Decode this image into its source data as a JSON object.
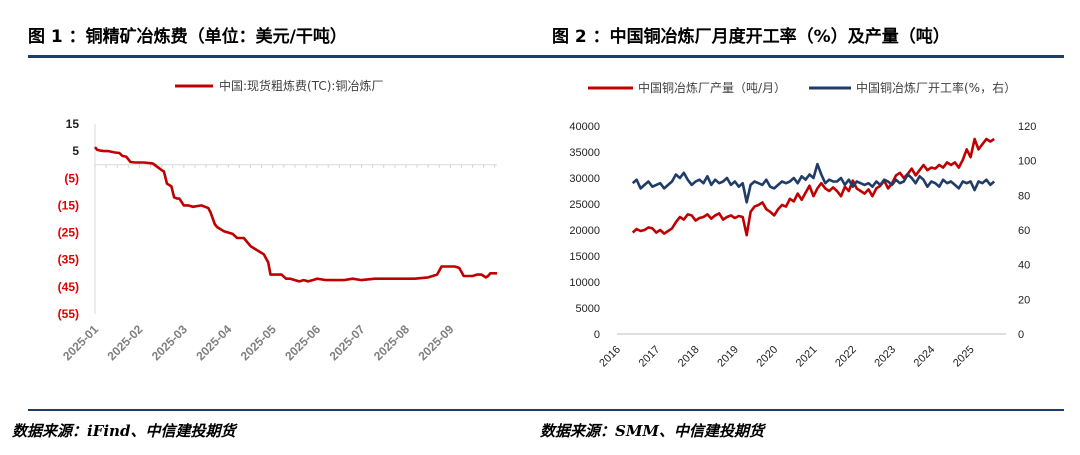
{
  "figures": [
    {
      "title": "图 1 ：铜精矿冶炼费（单位：美元/干吨）",
      "source": "数据来源：iFind、中信建投期货"
    },
    {
      "title": "图 2 ：中国铜冶炼厂月度开工率（%）及产量（吨）",
      "source": "数据来源：SMM、中信建投期货"
    }
  ],
  "colors": {
    "red": "#c00000",
    "blue": "#1f3d68",
    "negative_label": "#e00000",
    "rule": "#1f3e63"
  },
  "chart_data": [
    {
      "type": "line",
      "title": "铜精矿冶炼费（单位：美元/干吨）",
      "legend": [
        "中国:现货粗炼费(TC):铜冶炼厂"
      ],
      "ylim": [
        -55,
        15
      ],
      "yticks": [
        15,
        5,
        -5,
        -15,
        -25,
        -35,
        -45,
        -55
      ],
      "ytick_labels": [
        "15",
        "5",
        "(5)",
        "(15)",
        "(25)",
        "(35)",
        "(45)",
        "(55)"
      ],
      "xtick_labels": [
        "2025-01",
        "2025-02",
        "2025-03",
        "2025-04",
        "2025-05",
        "2025-06",
        "2025-07",
        "2025-08",
        "2025-09"
      ],
      "x_range_months": [
        0,
        9.05
      ],
      "series": [
        {
          "name": "中国:现货粗炼费(TC):铜冶炼厂",
          "x": [
            0.0,
            0.05,
            0.12,
            0.2,
            0.3,
            0.45,
            0.55,
            0.62,
            0.7,
            0.8,
            0.9,
            0.93,
            1.1,
            1.3,
            1.5,
            1.55,
            1.62,
            1.72,
            1.78,
            1.85,
            1.9,
            2.0,
            2.1,
            2.2,
            2.4,
            2.55,
            2.6,
            2.7,
            2.75,
            2.8,
            2.9,
            3.1,
            3.2,
            3.35,
            3.5,
            3.6,
            3.7,
            3.8,
            3.9,
            3.95,
            4.1,
            4.2,
            4.3,
            4.4,
            4.5,
            4.6,
            4.7,
            4.8,
            4.9,
            5.0,
            5.2,
            5.4,
            5.6,
            5.8,
            6.0,
            6.3,
            6.6,
            6.9,
            7.2,
            7.5,
            7.6,
            7.7,
            7.75,
            7.8,
            8.0,
            8.1,
            8.2,
            8.3,
            8.4,
            8.5,
            8.6,
            8.7,
            8.8,
            8.85,
            8.9,
            9.05
          ],
          "values": [
            6.5,
            5.5,
            5.2,
            5.0,
            5.0,
            4.5,
            4.3,
            3.2,
            3.0,
            1.0,
            0.8,
            0.8,
            0.8,
            0.5,
            -2.0,
            -2.5,
            -7.0,
            -8.0,
            -12.0,
            -12.5,
            -12.5,
            -15.0,
            -15.0,
            -15.5,
            -15.0,
            -16.0,
            -17.5,
            -22.0,
            -23.0,
            -23.5,
            -24.5,
            -25.5,
            -27.0,
            -27.0,
            -30.0,
            -31.0,
            -32.0,
            -33.0,
            -36.0,
            -40.5,
            -40.5,
            -40.5,
            -42.0,
            -42.0,
            -42.5,
            -43.0,
            -42.5,
            -43.0,
            -42.5,
            -42.0,
            -42.5,
            -42.5,
            -42.5,
            -42.0,
            -42.5,
            -42.0,
            -42.0,
            -42.0,
            -42.0,
            -41.5,
            -41.0,
            -40.5,
            -39.0,
            -37.5,
            -37.5,
            -37.5,
            -38.0,
            -41.0,
            -41.0,
            -41.0,
            -40.5,
            -40.5,
            -41.5,
            -41.0,
            -40.0,
            -40.0
          ]
        }
      ]
    },
    {
      "type": "line",
      "title": "中国铜冶炼厂月度开工率（%）及产量（吨）",
      "legend": [
        "中国铜冶炼厂产量（吨/月）",
        "中国铜冶炼厂开工率(%，右）"
      ],
      "ylim_left": [
        0,
        40000
      ],
      "yticks_left": [
        0,
        5000,
        10000,
        15000,
        20000,
        25000,
        30000,
        35000,
        40000
      ],
      "ylim_right": [
        0,
        120
      ],
      "yticks_right": [
        0,
        20,
        40,
        60,
        80,
        100,
        120
      ],
      "xtick_labels": [
        "2016",
        "2017",
        "2018",
        "2019",
        "2020",
        "2021",
        "2022",
        "2023",
        "2024",
        "2025"
      ],
      "x_range_years": [
        2016,
        2025.9
      ],
      "series": [
        {
          "name": "中国铜冶炼厂产量（吨/月）",
          "axis": "left",
          "x": [
            2016.4,
            2016.5,
            2016.6,
            2016.7,
            2016.8,
            2016.9,
            2017.0,
            2017.1,
            2017.2,
            2017.3,
            2017.4,
            2017.5,
            2017.6,
            2017.7,
            2017.8,
            2017.9,
            2018.0,
            2018.1,
            2018.2,
            2018.3,
            2018.4,
            2018.5,
            2018.6,
            2018.7,
            2018.8,
            2018.9,
            2019.0,
            2019.1,
            2019.2,
            2019.3,
            2019.4,
            2019.5,
            2019.6,
            2019.7,
            2019.8,
            2019.9,
            2020.0,
            2020.1,
            2020.2,
            2020.3,
            2020.4,
            2020.5,
            2020.6,
            2020.7,
            2020.8,
            2020.9,
            2021.0,
            2021.1,
            2021.2,
            2021.3,
            2021.4,
            2021.5,
            2021.6,
            2021.7,
            2021.8,
            2021.9,
            2022.0,
            2022.1,
            2022.2,
            2022.3,
            2022.4,
            2022.5,
            2022.6,
            2022.7,
            2022.8,
            2022.9,
            2023.0,
            2023.1,
            2023.2,
            2023.3,
            2023.4,
            2023.5,
            2023.6,
            2023.7,
            2023.8,
            2023.9,
            2024.0,
            2024.1,
            2024.2,
            2024.3,
            2024.4,
            2024.5,
            2024.6,
            2024.7,
            2024.8,
            2024.9,
            2025.0,
            2025.1,
            2025.2,
            2025.3,
            2025.4,
            2025.5,
            2025.6
          ],
          "values": [
            19500,
            20200,
            19800,
            20000,
            20500,
            20300,
            19500,
            20000,
            19300,
            19800,
            20300,
            21500,
            22500,
            22000,
            23000,
            22800,
            21800,
            22300,
            22500,
            23000,
            22200,
            22800,
            23200,
            22000,
            22500,
            22800,
            22300,
            22700,
            22500,
            19000,
            23500,
            24500,
            24800,
            25300,
            24000,
            23500,
            22800,
            24000,
            24800,
            24500,
            26000,
            25500,
            27000,
            25800,
            27200,
            28500,
            26500,
            28000,
            29000,
            28000,
            27500,
            28200,
            27500,
            26500,
            28300,
            27500,
            29500,
            28000,
            27500,
            27000,
            27800,
            26500,
            28000,
            28500,
            29500,
            28000,
            29000,
            30500,
            31000,
            30000,
            30800,
            31800,
            30500,
            31500,
            32500,
            31500,
            32000,
            31800,
            32500,
            32000,
            33000,
            32500,
            33000,
            32000,
            33500,
            35500,
            34000,
            37500,
            35500,
            36500,
            37500,
            37000,
            37500
          ]
        },
        {
          "name": "中国铜冶炼厂开工率(%，右）",
          "axis": "right",
          "x": [
            2016.4,
            2016.5,
            2016.6,
            2016.7,
            2016.8,
            2016.9,
            2017.0,
            2017.1,
            2017.2,
            2017.3,
            2017.4,
            2017.5,
            2017.6,
            2017.7,
            2017.8,
            2017.9,
            2018.0,
            2018.1,
            2018.2,
            2018.3,
            2018.4,
            2018.5,
            2018.6,
            2018.7,
            2018.8,
            2018.9,
            2019.0,
            2019.1,
            2019.2,
            2019.3,
            2019.4,
            2019.5,
            2019.6,
            2019.7,
            2019.8,
            2019.9,
            2020.0,
            2020.1,
            2020.2,
            2020.3,
            2020.4,
            2020.5,
            2020.6,
            2020.7,
            2020.8,
            2020.9,
            2021.0,
            2021.1,
            2021.2,
            2021.3,
            2021.4,
            2021.5,
            2021.6,
            2021.7,
            2021.8,
            2021.9,
            2022.0,
            2022.1,
            2022.2,
            2022.3,
            2022.4,
            2022.5,
            2022.6,
            2022.7,
            2022.8,
            2022.9,
            2023.0,
            2023.1,
            2023.2,
            2023.3,
            2023.4,
            2023.5,
            2023.6,
            2023.7,
            2023.8,
            2023.9,
            2024.0,
            2024.1,
            2024.2,
            2024.3,
            2024.4,
            2024.5,
            2024.6,
            2024.7,
            2024.8,
            2024.9,
            2025.0,
            2025.1,
            2025.2,
            2025.3,
            2025.4,
            2025.5,
            2025.6
          ],
          "values": [
            87,
            89,
            84,
            86,
            88,
            85,
            86,
            87,
            84,
            86,
            88,
            92,
            90,
            93,
            89,
            86,
            88,
            89,
            87,
            91,
            86,
            89,
            87,
            88,
            90,
            86,
            88,
            85,
            87,
            76,
            86,
            88,
            87,
            86,
            89,
            85,
            84,
            86,
            88,
            87,
            88,
            90,
            87,
            91,
            89,
            92,
            90,
            98,
            92,
            87,
            89,
            88,
            88,
            90,
            86,
            89,
            85,
            88,
            87,
            86,
            87,
            85,
            88,
            86,
            89,
            88,
            86,
            89,
            87,
            88,
            92,
            90,
            87,
            91,
            89,
            85,
            88,
            87,
            85,
            89,
            87,
            88,
            86,
            84,
            88,
            87,
            88,
            83,
            88,
            87,
            89,
            86,
            88
          ]
        }
      ]
    }
  ]
}
